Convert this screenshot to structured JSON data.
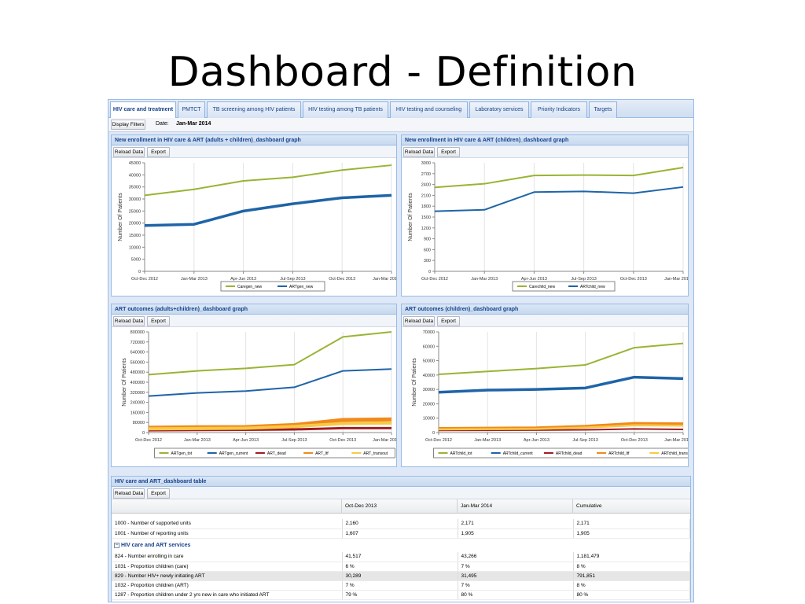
{
  "slide_title": "Dashboard - Definition",
  "tabs": [
    {
      "label": "HIV care and treatment",
      "active": true
    },
    {
      "label": "PMTCT",
      "active": false
    },
    {
      "label": "TB screening among HIV patients",
      "active": false
    },
    {
      "label": "HIV testing among TB patients",
      "active": false
    },
    {
      "label": "HIV testing and counseling",
      "active": false
    },
    {
      "label": "Laboratory services",
      "active": false
    },
    {
      "label": "Priority Indicators",
      "active": false
    },
    {
      "label": "Targets",
      "active": false
    }
  ],
  "filters": {
    "button_label": "Display Filters",
    "date_label": "Date:",
    "date_value": "Jan-Mar 2014"
  },
  "toolbar": {
    "reload_label": "Reload Data",
    "export_label": "Export"
  },
  "colors": {
    "green": "#99b433",
    "blue": "#1e64a8",
    "darkred": "#a11d21",
    "orange": "#f08a1c",
    "yellow": "#f7c948"
  },
  "panels": [
    {
      "title": "New enrollment in HIV care & ART (adults + children)_dashboard graph"
    },
    {
      "title": "New enrollment in HIV care & ART (children)_dashboard graph"
    },
    {
      "title": "ART outcomes (adults+children)_dashboard graph"
    },
    {
      "title": "ART outcomes (children)_dashboard graph"
    }
  ],
  "chart_data": [
    {
      "type": "line",
      "ylabel": "Number Of Patients",
      "categories": [
        "Oct-Dec 2012",
        "Jan-Mar 2013",
        "Apr-Jun 2013",
        "Jul-Sep 2013",
        "Oct-Dec 2013",
        "Jan-Mar 2014"
      ],
      "yticks": [
        "45000",
        "40000",
        "35000",
        "30000",
        "25000",
        "20000",
        "15000",
        "10000",
        "5000",
        "0"
      ],
      "ylim": [
        0,
        45000
      ],
      "series": [
        {
          "name": "Caregen_new",
          "color": "green",
          "width": 2,
          "values": [
            31500,
            34000,
            37500,
            39000,
            42000,
            44000
          ]
        },
        {
          "name": "ARTgen_new",
          "color": "blue",
          "width": 3.5,
          "values": [
            19000,
            19500,
            25000,
            28000,
            30500,
            31500
          ]
        }
      ]
    },
    {
      "type": "line",
      "ylabel": "Number Of Patients",
      "categories": [
        "Oct-Dec 2012",
        "Jan-Mar 2013",
        "Apr-Jun 2013",
        "Jul-Sep 2013",
        "Oct-Dec 2013",
        "Jan-Mar 2014"
      ],
      "yticks": [
        "3000",
        "2700",
        "2400",
        "2100",
        "1800",
        "1500",
        "1200",
        "900",
        "600",
        "300",
        "0"
      ],
      "ylim": [
        0,
        3000
      ],
      "series": [
        {
          "name": "Carechild_new",
          "color": "green",
          "width": 2,
          "values": [
            2320,
            2420,
            2650,
            2660,
            2650,
            2870
          ]
        },
        {
          "name": "ARTchild_new",
          "color": "blue",
          "width": 2,
          "values": [
            1660,
            1700,
            2190,
            2210,
            2160,
            2330
          ]
        }
      ]
    },
    {
      "type": "line",
      "ylabel": "Number Of Patients",
      "categories": [
        "Oct-Dec 2012",
        "Jan-Mar 2013",
        "Apr-Jun 2013",
        "Jul-Sep 2013",
        "Oct-Dec 2013",
        "Jan-Mar 2014"
      ],
      "yticks": [
        "800000",
        "720000",
        "640000",
        "560000",
        "480000",
        "400000",
        "320000",
        "240000",
        "160000",
        "80000",
        "0"
      ],
      "ylim": [
        0,
        800000
      ],
      "series": [
        {
          "name": "ARTgen_tot",
          "color": "green",
          "width": 2,
          "values": [
            460000,
            490000,
            510000,
            540000,
            760000,
            800000
          ]
        },
        {
          "name": "ARTgen_current",
          "color": "blue",
          "width": 2,
          "values": [
            290000,
            315000,
            330000,
            360000,
            490000,
            505000
          ]
        },
        {
          "name": "ART_dead",
          "color": "darkred",
          "width": 3,
          "values": [
            18000,
            20000,
            22000,
            25000,
            35000,
            35000
          ]
        },
        {
          "name": "ART_ltf",
          "color": "orange",
          "width": 5,
          "values": [
            38000,
            42000,
            44000,
            60000,
            100000,
            105000
          ]
        },
        {
          "name": "ART_transout",
          "color": "yellow",
          "width": 4,
          "values": [
            30000,
            32000,
            34000,
            48000,
            72000,
            76000
          ]
        }
      ]
    },
    {
      "type": "line",
      "ylabel": "Number Of Patients",
      "categories": [
        "Oct-Dec 2012",
        "Jan-Mar 2013",
        "Apr-Jun 2013",
        "Jul-Sep 2013",
        "Oct-Dec 2013",
        "Jan-Mar 2014"
      ],
      "yticks": [
        "70000",
        "60000",
        "50000",
        "40000",
        "30000",
        "20000",
        "10000",
        "0"
      ],
      "ylim": [
        0,
        70000
      ],
      "series": [
        {
          "name": "ARTchild_tot",
          "color": "green",
          "width": 2,
          "values": [
            40500,
            42500,
            44500,
            47000,
            59000,
            62000
          ]
        },
        {
          "name": "ARTchild_current",
          "color": "blue",
          "width": 3.5,
          "values": [
            28000,
            29500,
            30000,
            31000,
            38500,
            37500
          ]
        },
        {
          "name": "ARTchild_dead",
          "color": "darkred",
          "width": 2,
          "values": [
            1500,
            1600,
            1700,
            1900,
            2500,
            2200
          ]
        },
        {
          "name": "ARTchild_ltf",
          "color": "orange",
          "width": 3,
          "values": [
            3000,
            3200,
            3400,
            4500,
            6500,
            6200
          ]
        },
        {
          "name": "ARTchild_transout",
          "color": "yellow",
          "width": 2.5,
          "values": [
            2200,
            2400,
            2500,
            3500,
            5000,
            4800
          ]
        }
      ]
    }
  ],
  "table": {
    "title": "HIV care and ART_dashboard table",
    "columns": [
      "",
      "Oct-Dec 2013",
      "Jan-Mar 2014",
      "Cumulative"
    ],
    "rows_top": [
      [
        "1000 - Number of supported units",
        "2,160",
        "2,171",
        "2,171"
      ],
      [
        "1001 - Number of reporting units",
        "1,607",
        "1,905",
        "1,905"
      ]
    ],
    "group_label": "HIV care and ART services",
    "rows_group": [
      [
        "824 - Number enrolling in care",
        "41,517",
        "43,266",
        "1,181,479"
      ],
      [
        "1031 - Proportion children (care)",
        "6 %",
        "7 %",
        "8 %"
      ],
      [
        "829 - Number HIV+ newly initiating ART",
        "30,289",
        "31,495",
        "791,851"
      ],
      [
        "1032 - Proportion children (ART)",
        "7 %",
        "7 %",
        "8 %"
      ],
      [
        "1287 - Proportion children under 2 yrs new in care who initiated ART",
        "79 %",
        "80 %",
        "80 %"
      ]
    ]
  }
}
